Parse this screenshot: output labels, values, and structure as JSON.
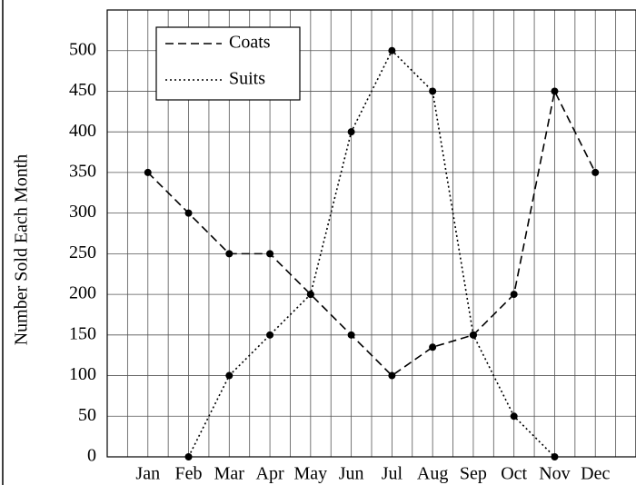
{
  "chart_data": {
    "type": "line",
    "y_label": "Number Sold Each Month",
    "categories": [
      "Jan",
      "Feb",
      "Mar",
      "Apr",
      "May",
      "Jun",
      "Jul",
      "Aug",
      "Sep",
      "Oct",
      "Nov",
      "Dec"
    ],
    "series": [
      {
        "name": "Coats",
        "color": "#000000",
        "dash": "dashed",
        "values": [
          350,
          300,
          250,
          250,
          200,
          150,
          100,
          135,
          150,
          200,
          450,
          350
        ]
      },
      {
        "name": "Suits",
        "color": "#000000",
        "dash": "dotted",
        "values": [
          null,
          0,
          100,
          150,
          200,
          400,
          500,
          450,
          150,
          50,
          0,
          null
        ]
      }
    ],
    "ylim": [
      0,
      550
    ],
    "yticks": [
      0,
      50,
      100,
      150,
      200,
      250,
      300,
      350,
      400,
      450,
      500
    ],
    "grid": true,
    "legend": "upper left"
  }
}
